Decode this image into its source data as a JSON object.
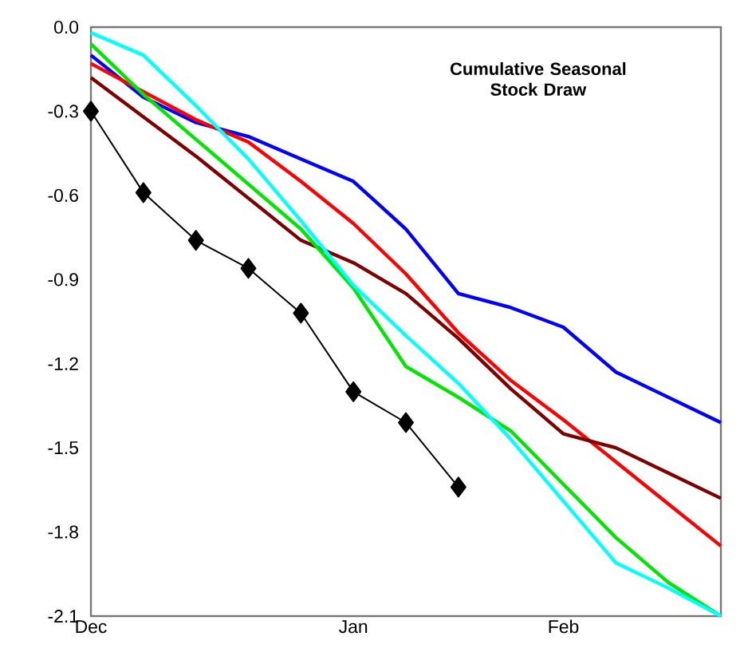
{
  "chart_data": {
    "type": "line",
    "title": "Cumulative  Seasonal Stock Draw",
    "categories": [
      "Dec",
      null,
      null,
      null,
      null,
      "Jan",
      null,
      null,
      null,
      "Feb",
      null,
      null,
      null
    ],
    "ylim": [
      -2.1,
      0
    ],
    "yticks": [
      {
        "value": 0,
        "label": "0.0"
      },
      -0.3,
      -0.6,
      -0.9,
      -1.2,
      -1.5,
      -1.8,
      -2.1
    ],
    "grid": false,
    "line_style": "solid",
    "series": [
      {
        "color": "#0000ff",
        "marker": "none",
        "values": [
          -0.1,
          -0.25,
          -0.34,
          -0.39,
          -0.47,
          -0.55,
          -0.72,
          -0.95,
          -1.0,
          -1.07,
          -1.23,
          -1.32,
          -1.41
        ]
      },
      {
        "color": "#ff0000",
        "marker": "none",
        "values": [
          -0.13,
          -0.23,
          -0.33,
          -0.41,
          -0.55,
          -0.7,
          -0.88,
          -1.09,
          -1.26,
          -1.4,
          -1.55,
          -1.7,
          -1.85
        ]
      },
      {
        "color": "#800000",
        "marker": "none",
        "values": [
          -0.18,
          -0.32,
          -0.46,
          -0.61,
          -0.76,
          -0.84,
          -0.95,
          -1.11,
          -1.29,
          -1.45,
          -1.5,
          -1.59,
          -1.68
        ]
      },
      {
        "color": "#00e600",
        "marker": "none",
        "values": [
          -0.06,
          -0.24,
          -0.4,
          -0.56,
          -0.72,
          -0.93,
          -1.21,
          -1.32,
          -1.44,
          -1.63,
          -1.82,
          -1.98,
          -2.1
        ]
      },
      {
        "color": "#00ffff",
        "marker": "none",
        "values": [
          -0.02,
          -0.1,
          -0.28,
          -0.47,
          -0.69,
          -0.92,
          -1.1,
          -1.27,
          -1.47,
          -1.69,
          -1.91,
          -2.0,
          -2.1
        ]
      },
      {
        "color": "#000000",
        "marker": "diamond",
        "values": [
          -0.3,
          -0.59,
          -0.76,
          -0.86,
          -1.02,
          -1.3,
          -1.41,
          -1.64,
          null,
          null,
          null,
          null,
          null
        ]
      }
    ]
  }
}
